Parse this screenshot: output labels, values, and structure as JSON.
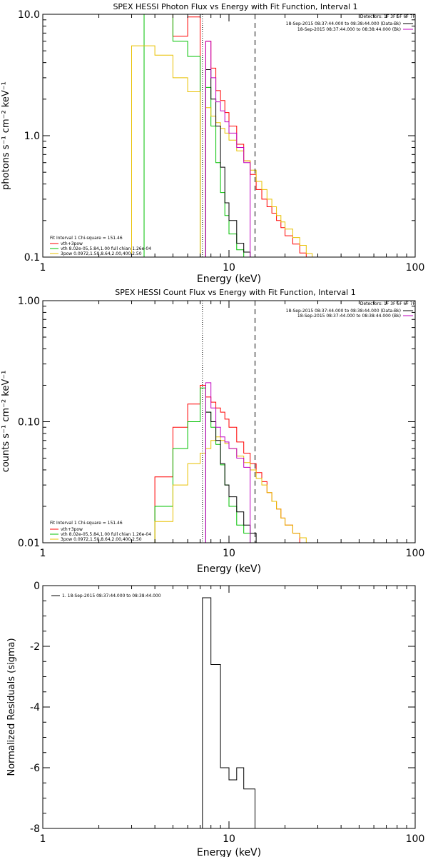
{
  "chart_data": [
    {
      "type": "line",
      "id": "photon",
      "title": "SPEX HESSI Photon Flux vs Energy with Fit Function, Interval 1",
      "xlabel": "Energy (keV)",
      "ylabel": "photons s⁻¹ cm⁻² keV⁻¹",
      "xscale": "log",
      "yscale": "log",
      "xlim": [
        1,
        100
      ],
      "ylim": [
        0.1,
        10.0
      ],
      "xticks": [
        {
          "v": 1,
          "label": "1"
        },
        {
          "v": 10,
          "label": "10"
        },
        {
          "v": 100,
          "label": "100"
        }
      ],
      "yticks": [
        {
          "v": 0.1,
          "label": "0.1"
        },
        {
          "v": 1,
          "label": "1.0"
        },
        {
          "v": 10,
          "label": "10.0"
        }
      ],
      "vlines": [
        {
          "x": 7.2,
          "style": "dotted",
          "color": "#000000"
        },
        {
          "x": 13.8,
          "style": "dashed",
          "color": "#000000"
        }
      ],
      "legend_right": {
        "header": "Detectors: 1F 3F 5F 6F 7F",
        "entries": [
          {
            "text": "18-Sep-2015 08:37:44.000 to 08:38:44.000 (Data-Bk)",
            "color": "#000000"
          },
          {
            "text": "18-Sep-2015 08:37:44.000 to 08:38:44.000 (Bk)",
            "color": "#c000c0"
          }
        ]
      },
      "legend_left": {
        "header": "Fit Interval 1    Chi-square = 151.46",
        "entries": [
          {
            "text": "vth+3pow",
            "color": "#ff0000"
          },
          {
            "text": "vth 8.02e-05,5.84,1.00  full chian 1.26e-04",
            "color": "#00c000"
          },
          {
            "text": "3pow 0.0972,1.50,8.64,2.00,400,2.50",
            "color": "#e8c000"
          }
        ]
      },
      "edges": [
        3,
        3.5,
        4,
        5,
        6,
        7,
        7.5,
        8,
        8.5,
        9,
        9.5,
        10,
        11,
        12,
        13,
        14,
        15,
        16,
        17,
        18,
        19,
        20,
        22,
        24,
        26,
        28,
        30,
        32
      ],
      "series": [
        {
          "name": "vth+3pow",
          "color": "#ff0000",
          "values": [
            null,
            50,
            10.5,
            6.6,
            9.5,
            null,
            6.0,
            3.6,
            2.35,
            1.95,
            1.55,
            1.2,
            0.85,
            0.62,
            0.48,
            0.36,
            0.3,
            0.26,
            0.23,
            0.2,
            0.175,
            0.15,
            0.128,
            0.108,
            null,
            null,
            null
          ]
        },
        {
          "name": "vth",
          "color": "#00c000",
          "values": [
            null,
            50,
            10.5,
            6.0,
            4.5,
            null,
            2.5,
            1.2,
            0.6,
            0.34,
            0.22,
            0.155,
            0.115,
            null,
            null,
            null,
            null,
            null,
            null,
            null,
            null,
            null,
            null,
            null,
            null,
            null,
            null
          ]
        },
        {
          "name": "3pow",
          "color": "#e8c000",
          "values": [
            5.5,
            5.5,
            4.6,
            3.0,
            2.3,
            null,
            1.7,
            1.45,
            1.28,
            1.15,
            1.05,
            0.92,
            0.75,
            0.62,
            0.52,
            0.42,
            0.36,
            0.3,
            0.26,
            0.22,
            0.195,
            0.17,
            0.145,
            0.125,
            0.107,
            0.1,
            null
          ]
        },
        {
          "name": "Data-Bk",
          "color": "#000000",
          "values": [
            null,
            null,
            null,
            null,
            null,
            null,
            3.5,
            2.0,
            1.2,
            0.55,
            0.28,
            0.2,
            0.13,
            0.11,
            null,
            null,
            null,
            null,
            null,
            null,
            null,
            null,
            null,
            null,
            null,
            null,
            null
          ]
        },
        {
          "name": "Bk",
          "color": "#c000c0",
          "values": [
            null,
            null,
            null,
            null,
            null,
            null,
            6.0,
            3.0,
            1.9,
            1.6,
            1.3,
            1.05,
            0.8,
            0.6,
            null,
            null,
            null,
            null,
            null,
            null,
            null,
            null,
            null,
            null,
            null,
            null,
            null
          ]
        }
      ]
    },
    {
      "type": "line",
      "id": "count",
      "title": "SPEX HESSI Count Flux vs Energy with Fit Function, Interval 1",
      "xlabel": "Energy (keV)",
      "ylabel": "counts s⁻¹ cm⁻² keV⁻¹",
      "xscale": "log",
      "yscale": "log",
      "xlim": [
        1,
        100
      ],
      "ylim": [
        0.01,
        1.0
      ],
      "xticks": [
        {
          "v": 1,
          "label": "1"
        },
        {
          "v": 10,
          "label": "10"
        },
        {
          "v": 100,
          "label": "100"
        }
      ],
      "yticks": [
        {
          "v": 0.01,
          "label": "0.01"
        },
        {
          "v": 0.1,
          "label": "0.10"
        },
        {
          "v": 1,
          "label": "1.00"
        }
      ],
      "vlines": [
        {
          "x": 7.2,
          "style": "dotted",
          "color": "#000000"
        },
        {
          "x": 13.8,
          "style": "dashed",
          "color": "#000000"
        }
      ],
      "legend_right": {
        "header": "Detectors: 1F 3F 5F 6F 7F",
        "entries": [
          {
            "text": "18-Sep-2015 08:37:44.000 to 08:38:44.000 (Data-Bk)",
            "color": "#000000"
          },
          {
            "text": "18-Sep-2015 08:37:44.000 to 08:38:44.000 (Bk)",
            "color": "#c000c0"
          }
        ]
      },
      "legend_left": {
        "header": "Fit Interval 1    Chi-square = 151.46",
        "entries": [
          {
            "text": "vth+3pow",
            "color": "#ff0000"
          },
          {
            "text": "vth 8.02e-05,5.84,1.00  full chian 1.26e-04",
            "color": "#00c000"
          },
          {
            "text": "3pow 0.0972,1.50,8.64,2.00,400,2.50",
            "color": "#e8c000"
          }
        ]
      },
      "edges": [
        4,
        5,
        6,
        7,
        7.5,
        8,
        8.5,
        9,
        9.5,
        10,
        11,
        12,
        13,
        14,
        15,
        16,
        17,
        18,
        19,
        20,
        22,
        24,
        26,
        28,
        30,
        32,
        34,
        36
      ],
      "series": [
        {
          "name": "vth+3pow",
          "color": "#ff0000",
          "values": [
            0.035,
            0.09,
            0.14,
            0.2,
            0.16,
            0.145,
            0.13,
            0.12,
            0.105,
            0.09,
            0.068,
            0.055,
            0.045,
            0.038,
            0.032,
            0.026,
            0.022,
            0.019,
            0.016,
            0.014,
            0.012,
            null,
            null,
            null,
            null,
            null,
            null
          ]
        },
        {
          "name": "vth",
          "color": "#00c000",
          "values": [
            0.02,
            0.06,
            0.1,
            0.19,
            0.12,
            0.09,
            0.065,
            0.044,
            0.03,
            0.02,
            0.014,
            0.012,
            null,
            null,
            null,
            null,
            null,
            null,
            null,
            null,
            null,
            null,
            null,
            null,
            null,
            null,
            null
          ]
        },
        {
          "name": "3pow",
          "color": "#e8c000",
          "values": [
            0.015,
            0.03,
            0.045,
            0.055,
            0.06,
            0.07,
            0.075,
            0.07,
            0.066,
            0.06,
            0.052,
            0.046,
            0.04,
            0.034,
            0.03,
            0.026,
            0.022,
            0.019,
            0.016,
            0.014,
            0.012,
            0.011,
            0.01,
            null,
            null,
            null,
            null
          ]
        },
        {
          "name": "Data-Bk",
          "color": "#000000",
          "values": [
            null,
            null,
            null,
            null,
            0.12,
            0.1,
            0.07,
            0.045,
            0.03,
            0.024,
            0.018,
            0.014,
            0.012,
            null,
            null,
            null,
            null,
            null,
            null,
            null,
            null,
            null,
            null,
            null,
            null,
            null,
            null
          ]
        },
        {
          "name": "Bk",
          "color": "#c000c0",
          "values": [
            null,
            null,
            null,
            null,
            0.21,
            0.13,
            0.09,
            0.075,
            0.068,
            0.06,
            0.05,
            0.042,
            null,
            null,
            null,
            null,
            null,
            null,
            null,
            null,
            null,
            null,
            null,
            null,
            null,
            null,
            null
          ]
        }
      ]
    },
    {
      "type": "line",
      "id": "resid",
      "title": "",
      "xlabel": "Energy (keV)",
      "ylabel": "Normalized Residuals (sigma)",
      "xscale": "log",
      "yscale": "linear",
      "xlim": [
        1,
        100
      ],
      "ylim": [
        -8,
        0
      ],
      "xticks": [
        {
          "v": 1,
          "label": "1"
        },
        {
          "v": 10,
          "label": "10"
        },
        {
          "v": 100,
          "label": "100"
        }
      ],
      "yticks": [
        {
          "v": 0,
          "label": "0"
        },
        {
          "v": -2,
          "label": "-2"
        },
        {
          "v": -4,
          "label": "-4"
        },
        {
          "v": -6,
          "label": "-6"
        },
        {
          "v": -8,
          "label": "-8"
        }
      ],
      "vlines": [],
      "legend_left": {
        "header": "",
        "entries": [
          {
            "text": "1. 18-Sep-2015 08:37:44.000 to 08:38:44.000",
            "color": "#000000"
          }
        ]
      },
      "edges": [
        7.2,
        8,
        9,
        10,
        11,
        12,
        13.8
      ],
      "series": [
        {
          "name": "1. 18-Sep-2015 08:37:44.000 to 08:38:44.000",
          "color": "#000000",
          "values": [
            -0.4,
            -2.6,
            -6.0,
            -6.4,
            -6.0,
            -6.7
          ],
          "close_to": -8
        }
      ]
    }
  ]
}
